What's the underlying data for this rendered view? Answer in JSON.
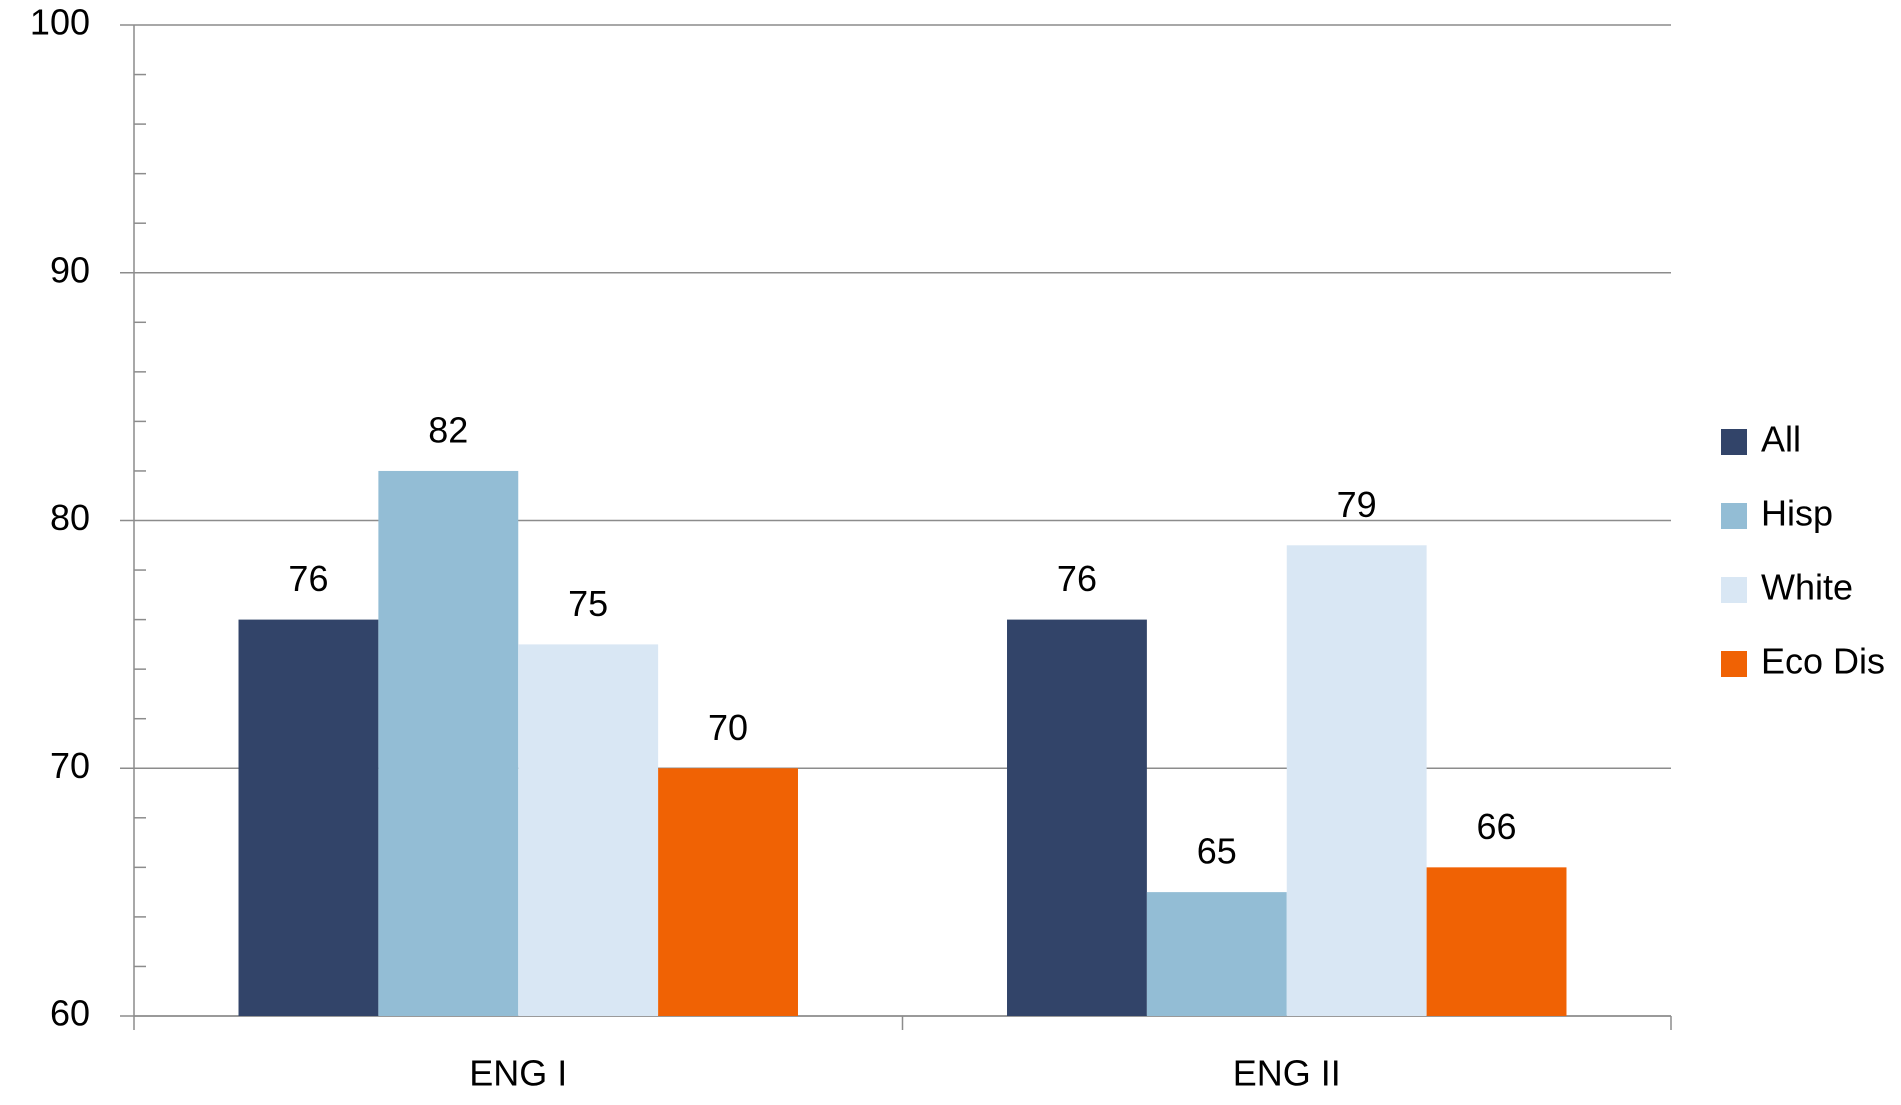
{
  "chart_data": {
    "type": "bar",
    "categories": [
      "ENG I",
      "ENG II"
    ],
    "series": [
      {
        "name": "All",
        "color": "#324469",
        "values": [
          76,
          76
        ]
      },
      {
        "name": "Hisp",
        "color": "#93bdd5",
        "values": [
          82,
          65
        ]
      },
      {
        "name": "White",
        "color": "#d9e7f4",
        "values": [
          75,
          79
        ]
      },
      {
        "name": "Eco Dis",
        "color": "#f06204",
        "values": [
          70,
          66
        ]
      }
    ],
    "ylim": [
      60,
      100
    ],
    "yticks": [
      60,
      70,
      80,
      90,
      100
    ],
    "yminorticks": [
      62,
      64,
      66,
      68,
      72,
      74,
      76,
      78,
      82,
      84,
      86,
      88,
      92,
      94,
      96,
      98
    ],
    "grid": true,
    "legend": "right"
  }
}
